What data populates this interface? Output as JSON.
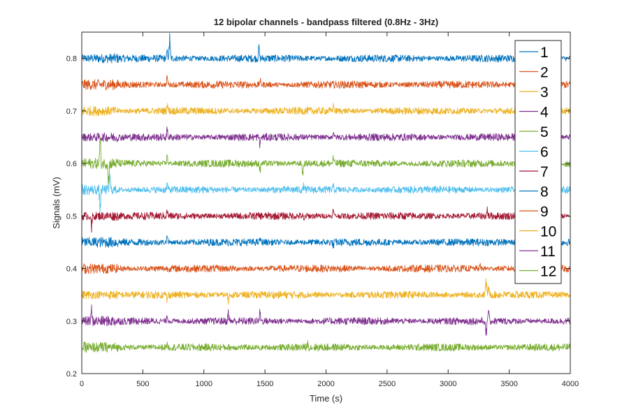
{
  "chart_data": {
    "type": "line",
    "title": "12 bipolar channels - bandpass filtered (0.8Hz - 3Hz)",
    "xlabel": "Time (s)",
    "ylabel": "Signals (mV)",
    "xlim": [
      0,
      4000
    ],
    "ylim": [
      0.2,
      0.85
    ],
    "xticks": [
      0,
      500,
      1000,
      1500,
      2000,
      2500,
      3000,
      3500,
      4000
    ],
    "yticks": [
      0.2,
      0.3,
      0.4,
      0.5,
      0.6,
      0.7,
      0.8
    ],
    "grid": false,
    "legend_position": "top-right",
    "noise_amplitude_mV": 0.006,
    "series": [
      {
        "name": "1",
        "color": "#0072BD",
        "baseline": 0.8,
        "spikes": [
          {
            "x": 700,
            "amp": 0.02
          },
          {
            "x": 720,
            "amp": 0.05
          },
          {
            "x": 1450,
            "amp": 0.03
          }
        ]
      },
      {
        "name": "2",
        "color": "#D95319",
        "baseline": 0.75,
        "spikes": [
          {
            "x": 700,
            "amp": 0.02
          },
          {
            "x": 1460,
            "amp": -0.03
          },
          {
            "x": 1460,
            "amp": 0.04
          }
        ]
      },
      {
        "name": "3",
        "color": "#EDB120",
        "baseline": 0.7,
        "spikes": [
          {
            "x": 700,
            "amp": 0.02
          },
          {
            "x": 2060,
            "amp": 0.015
          }
        ]
      },
      {
        "name": "4",
        "color": "#7E2F8E",
        "baseline": 0.65,
        "spikes": [
          {
            "x": 700,
            "amp": 0.02
          },
          {
            "x": 1460,
            "amp": -0.02
          },
          {
            "x": 2060,
            "amp": 0.015
          }
        ]
      },
      {
        "name": "5",
        "color": "#77AC30",
        "baseline": 0.6,
        "spikes": [
          {
            "x": 150,
            "amp": 0.06
          },
          {
            "x": 220,
            "amp": -0.05
          },
          {
            "x": 700,
            "amp": 0.02
          },
          {
            "x": 1460,
            "amp": -0.02
          },
          {
            "x": 1810,
            "amp": -0.03
          },
          {
            "x": 2060,
            "amp": 0.015
          }
        ]
      },
      {
        "name": "6",
        "color": "#4DBEEE",
        "baseline": 0.55,
        "spikes": [
          {
            "x": 150,
            "amp": -0.05
          },
          {
            "x": 230,
            "amp": 0.04
          },
          {
            "x": 700,
            "amp": 0.015
          },
          {
            "x": 1820,
            "amp": 0.04
          },
          {
            "x": 1820,
            "amp": -0.03
          },
          {
            "x": 2060,
            "amp": 0.01
          }
        ]
      },
      {
        "name": "7",
        "color": "#A2142F",
        "baseline": 0.5,
        "spikes": [
          {
            "x": 80,
            "amp": -0.03
          },
          {
            "x": 700,
            "amp": 0.015
          },
          {
            "x": 1820,
            "amp": -0.015
          },
          {
            "x": 2060,
            "amp": 0.015
          },
          {
            "x": 3320,
            "amp": 0.015
          }
        ]
      },
      {
        "name": "8",
        "color": "#0072BD",
        "baseline": 0.45,
        "spikes": [
          {
            "x": 700,
            "amp": 0.02
          },
          {
            "x": 1460,
            "amp": 0.01
          },
          {
            "x": 2060,
            "amp": -0.01
          }
        ]
      },
      {
        "name": "9",
        "color": "#D95319",
        "baseline": 0.4,
        "spikes": [
          {
            "x": 700,
            "amp": 0.02
          },
          {
            "x": 700,
            "amp": -0.02
          },
          {
            "x": 3260,
            "amp": 0.008
          }
        ]
      },
      {
        "name": "10",
        "color": "#EDB120",
        "baseline": 0.35,
        "spikes": [
          {
            "x": 700,
            "amp": -0.015
          },
          {
            "x": 1200,
            "amp": -0.015
          },
          {
            "x": 3310,
            "amp": 0.04
          },
          {
            "x": 3330,
            "amp": 0.02
          }
        ]
      },
      {
        "name": "11",
        "color": "#7E2F8E",
        "baseline": 0.3,
        "spikes": [
          {
            "x": 80,
            "amp": 0.025
          },
          {
            "x": 700,
            "amp": 0.015
          },
          {
            "x": 1200,
            "amp": 0.02
          },
          {
            "x": 1460,
            "amp": 0.025
          },
          {
            "x": 3310,
            "amp": -0.04
          },
          {
            "x": 3330,
            "amp": 0.03
          }
        ]
      },
      {
        "name": "12",
        "color": "#77AC30",
        "baseline": 0.25,
        "spikes": [
          {
            "x": 80,
            "amp": 0.02
          },
          {
            "x": 80,
            "amp": -0.03
          },
          {
            "x": 700,
            "amp": 0.01
          },
          {
            "x": 1460,
            "amp": -0.01
          },
          {
            "x": 1850,
            "amp": 0.01
          }
        ]
      }
    ]
  }
}
